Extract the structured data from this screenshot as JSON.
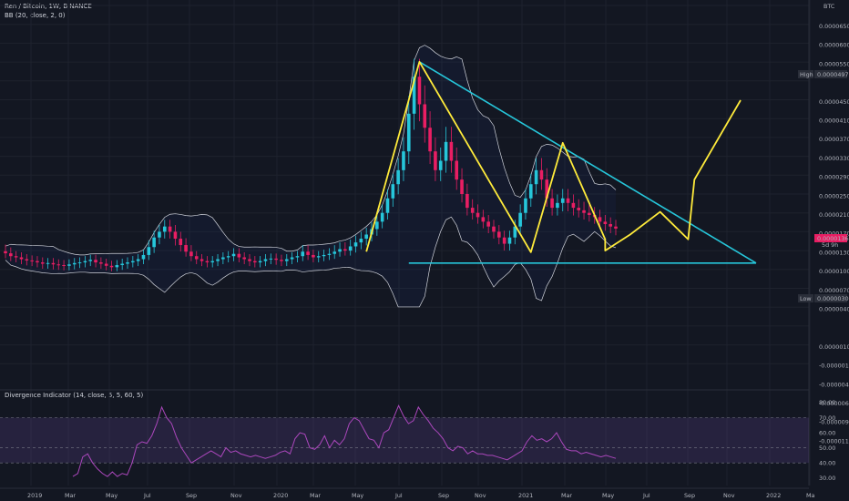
{
  "chart_data": [
    {
      "type": "candlestick",
      "title": "Ren / Bitcoin, 1W, BINANCE",
      "indicator": "BB (20, close, 2, 0)",
      "currency": "BTC",
      "y_ticks": [
        "0.00006500",
        "0.00006000",
        "0.00005500",
        "0.00004975",
        "0.00004500",
        "0.00004100",
        "0.00003700",
        "0.00003300",
        "0.00002900",
        "0.00002500",
        "0.00002100",
        "0.00001700",
        "0.00001300",
        "0.00001000",
        "0.00000700",
        "0.00000400",
        "0.00000309",
        "0.00000100",
        "-0.00000150",
        "-0.00000400",
        "-0.00000650",
        "-0.00000910",
        "-0.00001170"
      ],
      "high_label": "High",
      "high_value": "0.00004975",
      "low_label": "Low",
      "low_value": "0.00000309",
      "last_price": "0.00001364",
      "countdown": "5d 9h",
      "ylim": [
        -1.17e-05,
        6.5e-05
      ],
      "y_scale": "log",
      "x_labels": [
        "2019",
        "Mar",
        "May",
        "Jul",
        "Sep",
        "Nov",
        "2020",
        "Mar",
        "May",
        "Jul",
        "Sep",
        "Nov",
        "2021",
        "Mar",
        "May",
        "Jul",
        "Sep",
        "Nov",
        "2022",
        "Ma"
      ],
      "grid": true,
      "series": [
        {
          "name": "price",
          "closes": [
            9.5e-06,
            9e-06,
            8.8e-06,
            8.5e-06,
            8.3e-06,
            8.2e-06,
            8e-06,
            7.8e-06,
            7.9e-06,
            7.7e-06,
            7.6e-06,
            7.5e-06,
            7.7e-06,
            7.9e-06,
            8e-06,
            8.2e-06,
            8.4e-06,
            8e-06,
            7.8e-06,
            7.5e-06,
            7.3e-06,
            7.6e-06,
            7.8e-06,
            8e-06,
            8.2e-06,
            8.5e-06,
            9.2e-06,
            1.05e-05,
            1.2e-05,
            1.3e-05,
            1.4e-05,
            1.3e-05,
            1.18e-05,
            1.08e-05,
            9.8e-06,
            9e-06,
            8.5e-06,
            8.2e-06,
            8e-06,
            8.2e-06,
            8.5e-06,
            8.8e-06,
            9e-06,
            9.4e-06,
            8.8e-06,
            8.5e-06,
            8.2e-06,
            8e-06,
            8.2e-06,
            8.5e-06,
            8.6e-06,
            8.4e-06,
            8.2e-06,
            8.5e-06,
            8.8e-06,
            9e-06,
            9.8e-06,
            9.2e-06,
            8.8e-06,
            9e-06,
            9.2e-06,
            9.4e-06,
            9.8e-06,
            1.02e-05,
            1e-05,
            1.06e-05,
            1.12e-05,
            1.18e-05,
            1.25e-05,
            1.35e-05,
            1.5e-05,
            1.7e-05,
            2e-05,
            2.3e-05,
            2.6e-05,
            3e-05,
            3.8e-05,
            4.6e-05,
            4e-05,
            3.5e-05,
            3e-05,
            2.6e-05,
            2.8e-05,
            3.2e-05,
            2.8e-05,
            2.4e-05,
            2.1e-05,
            1.8e-05,
            1.7e-05,
            1.6e-05,
            1.5e-05,
            1.4e-05,
            1.3e-05,
            1.2e-05,
            1.1e-05,
            1.2e-05,
            1.4e-05,
            1.7e-05,
            2e-05,
            2.3e-05,
            2.6e-05,
            2.4e-05,
            2e-05,
            1.8e-05,
            1.9e-05,
            2e-05,
            1.9e-05,
            1.8e-05,
            1.75e-05,
            1.7e-05,
            1.65e-05,
            1.6e-05,
            1.5e-05,
            1.45e-05,
            1.4e-05,
            1.36e-05
          ]
        },
        {
          "name": "projection",
          "points": [
            [
              1.26e-05,
              1e-05
            ],
            [
              2.06e-05,
              1.25e-05
            ],
            [
              3.02e-05,
              1.72e-05
            ],
            [
              3.92e-05,
              1.17e-05
            ],
            [
              4.12e-05,
              2.4e-05
            ],
            [
              5.6e-05,
              4.09e-05
            ]
          ]
        }
      ]
    },
    {
      "type": "line",
      "title": "Divergence Indicator (14, close, 5, 5, 60, 5)",
      "y_ticks": [
        "80.00",
        "70.00",
        "60.00",
        "50.00",
        "40.00",
        "30.00"
      ],
      "ylim": [
        25,
        86
      ],
      "band": [
        40,
        70
      ],
      "series": [
        {
          "name": "rsi",
          "values": [
            31,
            33,
            44,
            46,
            40,
            36,
            33,
            31,
            34,
            31,
            33,
            32,
            40,
            52,
            54,
            53,
            58,
            66,
            77,
            70,
            66,
            57,
            50,
            45,
            40,
            42,
            44,
            46,
            48,
            46,
            44,
            50,
            47,
            48,
            46,
            45,
            44,
            45,
            44,
            43,
            44,
            45,
            47,
            48,
            46,
            56,
            60,
            59,
            50,
            49,
            52,
            58,
            50,
            55,
            52,
            56,
            66,
            70,
            68,
            62,
            56,
            55,
            50,
            60,
            62,
            70,
            78,
            71,
            66,
            68,
            77,
            72,
            68,
            63,
            60,
            56,
            50,
            48,
            51,
            50,
            46,
            48,
            46,
            46,
            45,
            45,
            44,
            43,
            42,
            44,
            46,
            48,
            54,
            58,
            55,
            56,
            54,
            56,
            60,
            54,
            49,
            48,
            48,
            46,
            47,
            46,
            45,
            44,
            45,
            44,
            43
          ]
        }
      ]
    }
  ]
}
